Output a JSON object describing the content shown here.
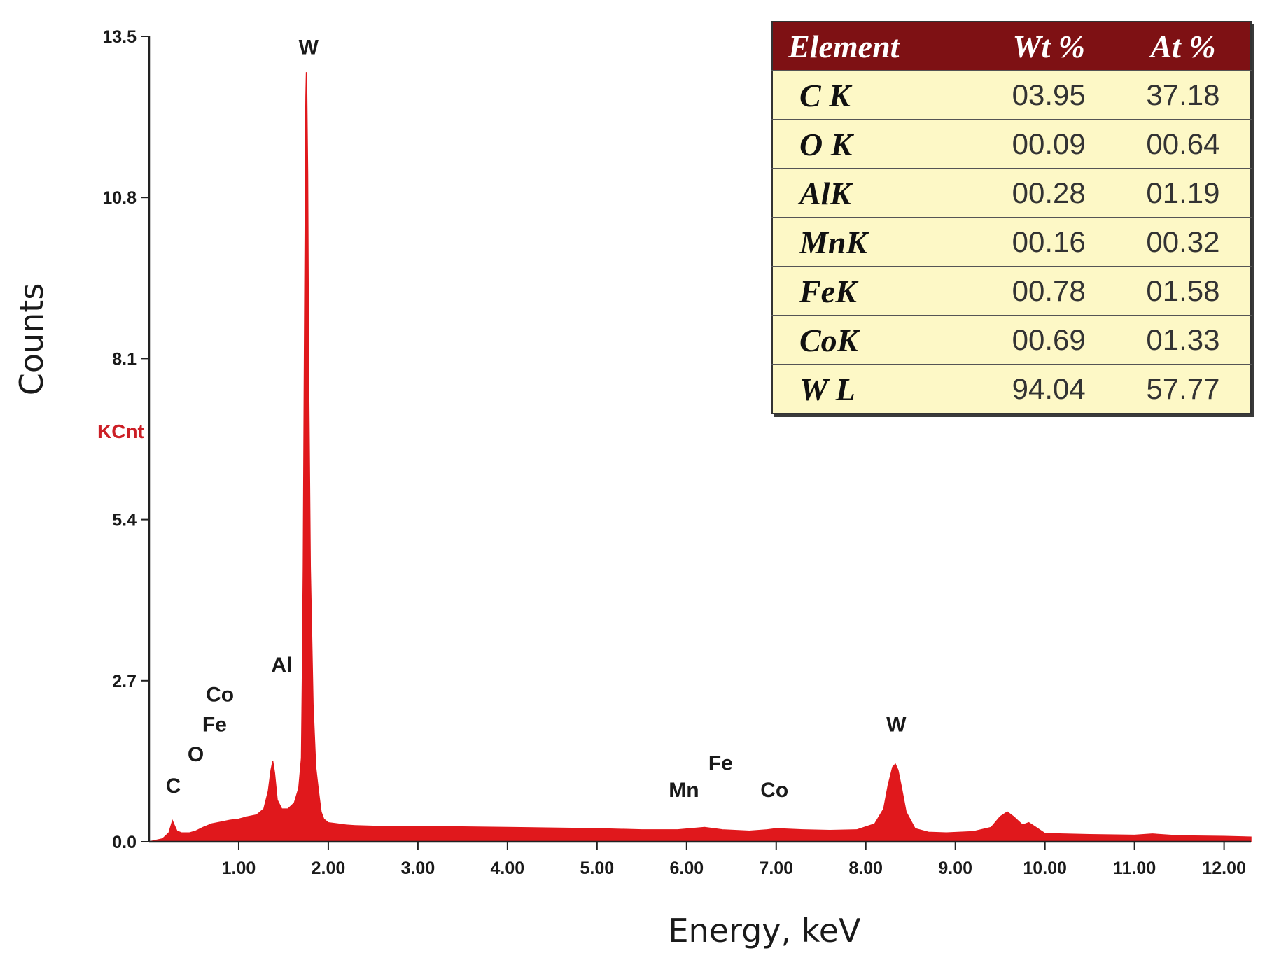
{
  "chart_data": {
    "type": "area",
    "xlabel": "Energy, keV",
    "ylabel": "Counts",
    "yunit": "KCnt",
    "xlim": [
      0,
      12.3
    ],
    "ylim": [
      0,
      13.5
    ],
    "yticks": [
      "0.0",
      "2.7",
      "5.4",
      "8.1",
      "10.8",
      "13.5"
    ],
    "yticks_values": [
      0.0,
      2.7,
      5.4,
      8.1,
      10.8,
      13.5
    ],
    "xticks": [
      "1.00",
      "2.00",
      "3.00",
      "4.00",
      "5.00",
      "6.00",
      "7.00",
      "8.00",
      "9.00",
      "10.00",
      "11.00",
      "12.00"
    ],
    "xticks_values": [
      1,
      2,
      3,
      4,
      5,
      6,
      7,
      8,
      9,
      10,
      11,
      12
    ],
    "series_color": "#e0181c",
    "series": [
      {
        "x": [
          0.0,
          0.15,
          0.22,
          0.26,
          0.28,
          0.31,
          0.36,
          0.45,
          0.52,
          0.6,
          0.7,
          0.8,
          0.9,
          1.0,
          1.1,
          1.2,
          1.28,
          1.33,
          1.36,
          1.38,
          1.4,
          1.43,
          1.48,
          1.55,
          1.62,
          1.67,
          1.7,
          1.71,
          1.72,
          1.73,
          1.74,
          1.745,
          1.75,
          1.755,
          1.76,
          1.77,
          1.78,
          1.8,
          1.83,
          1.86,
          1.89,
          1.92,
          1.95,
          2.0,
          2.1,
          2.2,
          2.3,
          2.5,
          3.0,
          3.5,
          4.0,
          4.5,
          5.0,
          5.5,
          5.9,
          6.2,
          6.4,
          6.7,
          6.9,
          7.0,
          7.3,
          7.6,
          7.9,
          8.1,
          8.2,
          8.25,
          8.3,
          8.33,
          8.36,
          8.4,
          8.45,
          8.55,
          8.7,
          8.9,
          9.2,
          9.4,
          9.5,
          9.58,
          9.65,
          9.75,
          9.82,
          9.9,
          10.0,
          10.2,
          10.5,
          11.0,
          11.2,
          11.5,
          12.0,
          12.3
        ],
        "y": [
          0.0,
          0.05,
          0.15,
          0.35,
          0.28,
          0.18,
          0.15,
          0.15,
          0.18,
          0.24,
          0.3,
          0.33,
          0.36,
          0.38,
          0.42,
          0.45,
          0.55,
          0.85,
          1.2,
          1.35,
          1.15,
          0.7,
          0.55,
          0.55,
          0.65,
          0.9,
          1.4,
          2.8,
          4.6,
          7.5,
          10.2,
          11.8,
          12.5,
          12.9,
          12.6,
          11.2,
          8.0,
          4.6,
          2.3,
          1.25,
          0.85,
          0.5,
          0.38,
          0.32,
          0.3,
          0.28,
          0.27,
          0.26,
          0.25,
          0.25,
          0.24,
          0.23,
          0.22,
          0.2,
          0.2,
          0.24,
          0.2,
          0.18,
          0.2,
          0.22,
          0.2,
          0.19,
          0.2,
          0.3,
          0.55,
          0.95,
          1.25,
          1.3,
          1.2,
          0.9,
          0.5,
          0.22,
          0.16,
          0.15,
          0.17,
          0.24,
          0.42,
          0.5,
          0.42,
          0.28,
          0.32,
          0.24,
          0.14,
          0.13,
          0.12,
          0.11,
          0.13,
          0.1,
          0.09,
          0.08
        ]
      }
    ],
    "peak_labels": [
      {
        "text": "W",
        "x": 1.78,
        "y": 13.2
      },
      {
        "text": "Al",
        "x": 1.48,
        "y": 2.85
      },
      {
        "text": "Co",
        "x": 0.79,
        "y": 2.35
      },
      {
        "text": "Fe",
        "x": 0.73,
        "y": 1.85
      },
      {
        "text": "O",
        "x": 0.52,
        "y": 1.35
      },
      {
        "text": "C",
        "x": 0.27,
        "y": 0.82
      },
      {
        "text": "Mn",
        "x": 5.97,
        "y": 0.75
      },
      {
        "text": "Fe",
        "x": 6.38,
        "y": 1.2
      },
      {
        "text": "Co",
        "x": 6.98,
        "y": 0.75
      },
      {
        "text": "W",
        "x": 8.34,
        "y": 1.85
      }
    ]
  },
  "table": {
    "headers": [
      "Element",
      "Wt %",
      "At %"
    ],
    "rows": [
      {
        "element": "C K",
        "wt": "03.95",
        "at": "37.18"
      },
      {
        "element": "O K",
        "wt": "00.09",
        "at": "00.64"
      },
      {
        "element": "AlK",
        "wt": "00.28",
        "at": "01.19"
      },
      {
        "element": "MnK",
        "wt": "00.16",
        "at": "00.32"
      },
      {
        "element": "FeK",
        "wt": "00.78",
        "at": "01.58"
      },
      {
        "element": "CoK",
        "wt": "00.69",
        "at": "01.33"
      },
      {
        "element": "W L",
        "wt": "94.04",
        "at": "57.77"
      }
    ]
  }
}
